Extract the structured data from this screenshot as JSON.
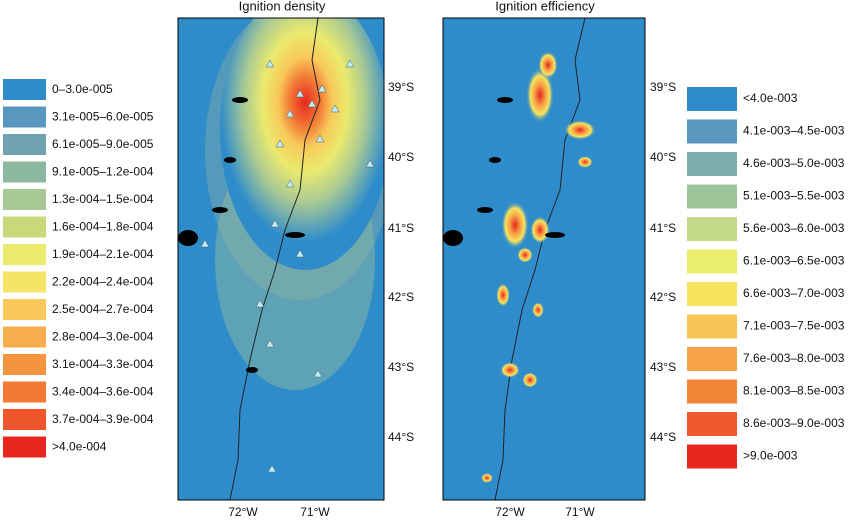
{
  "left_panel": {
    "title": "Ignition density",
    "lon_labels": [
      "72°W",
      "71°W"
    ],
    "lat_labels": [
      "39°S",
      "40°S",
      "41°S",
      "42°S",
      "43°S",
      "44°S"
    ]
  },
  "right_panel": {
    "title": "Ignition efficiency",
    "lon_labels": [
      "72°W",
      "71°W"
    ],
    "lat_labels": [
      "39°S",
      "40°S",
      "41°S",
      "42°S",
      "43°S",
      "44°S"
    ]
  },
  "left_legend": [
    {
      "label": "0–3.0e-005",
      "color": "#2f8ccb"
    },
    {
      "label": "3.1e-005–6.0e-005",
      "color": "#5a97be"
    },
    {
      "label": "6.1e-005–9.0e-005",
      "color": "#6fa3b0"
    },
    {
      "label": "9.1e-005–1.2e-004",
      "color": "#8db8a0"
    },
    {
      "label": "1.3e-004–1.5e-004",
      "color": "#a9c994"
    },
    {
      "label": "1.6e-004–1.8e-004",
      "color": "#c8d97c"
    },
    {
      "label": "1.9e-004–2.1e-004",
      "color": "#eaea6e"
    },
    {
      "label": "2.2e-004–2.4e-004",
      "color": "#f6e467"
    },
    {
      "label": "2.5e-004–2.7e-004",
      "color": "#f8c95a"
    },
    {
      "label": "2.8e-004–3.0e-004",
      "color": "#f6ad4b"
    },
    {
      "label": "3.1e-004–3.3e-004",
      "color": "#f59440"
    },
    {
      "label": "3.4e-004–3.6e-004",
      "color": "#f27a35"
    },
    {
      "label": "3.7e-004–3.9e-004",
      "color": "#ee552b"
    },
    {
      "label": ">4.0e-004",
      "color": "#e8261f"
    }
  ],
  "right_legend": [
    {
      "label": "<4.0e-003",
      "color": "#2f8ccb"
    },
    {
      "label": "4.1e-003–4.5e-003",
      "color": "#5a97be"
    },
    {
      "label": "4.6e-003–5.0e-003",
      "color": "#7eaeab"
    },
    {
      "label": "5.1e-003–5.5e-003",
      "color": "#9cc59a"
    },
    {
      "label": "5.6e-003–6.0e-003",
      "color": "#c4d98a"
    },
    {
      "label": "6.1e-003–6.5e-003",
      "color": "#eaee6c"
    },
    {
      "label": "6.6e-003–7.0e-003",
      "color": "#f7e35e"
    },
    {
      "label": "7.1e-003–7.5e-003",
      "color": "#f8c656"
    },
    {
      "label": "7.6e-003–8.0e-003",
      "color": "#f6a447"
    },
    {
      "label": "8.1e-003–8.5e-003",
      "color": "#f38539"
    },
    {
      "label": "8.6e-003–9.0e-003",
      "color": "#ef5a2d"
    },
    {
      "label": ">9.0e-003",
      "color": "#e8261f"
    }
  ]
}
